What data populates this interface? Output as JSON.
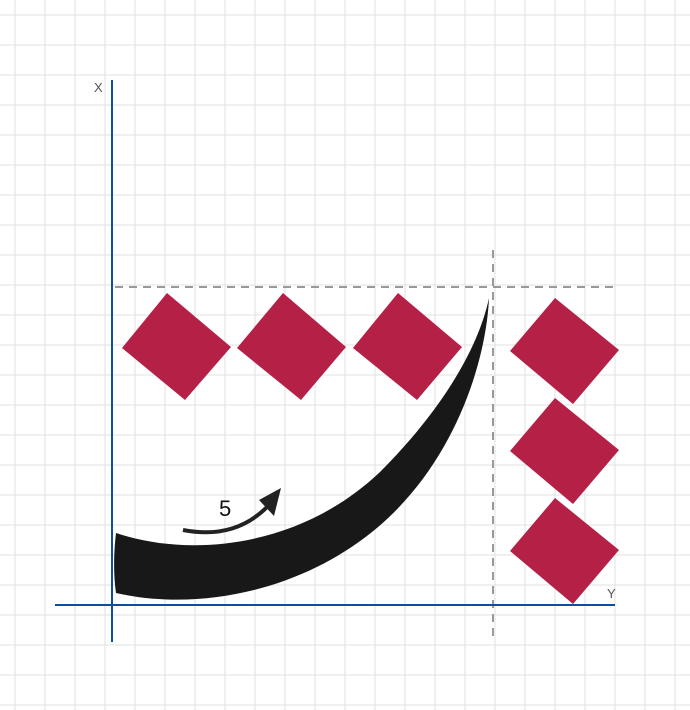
{
  "axes": {
    "x_label": "X",
    "y_label": "Y",
    "color": "#0b4fa0"
  },
  "annotation": {
    "label": "5"
  },
  "colors": {
    "diamond": "#b52047",
    "curve": "#181818",
    "grid": "#e2e2e2",
    "dashed": "#999999"
  },
  "shapes": {
    "diamond_count": 6
  }
}
